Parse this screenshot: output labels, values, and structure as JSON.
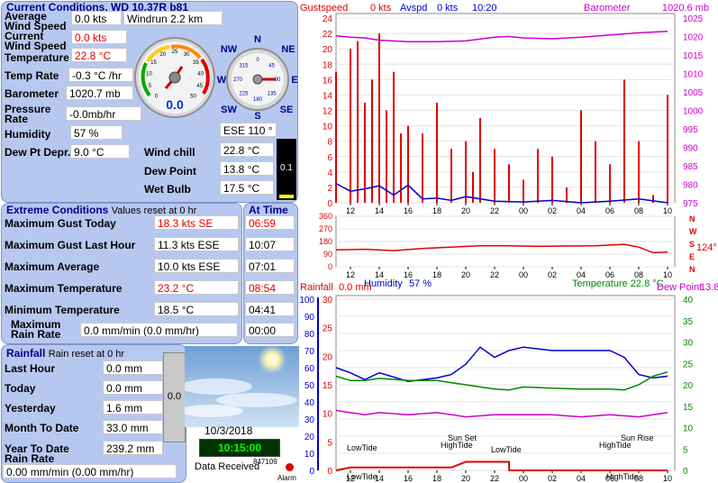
{
  "current": {
    "title": "Current Conditions, WD 10.37R b81",
    "avg_wind_label_1": "Average",
    "avg_wind_label_2": "Wind Speed",
    "avg_wind_value": "0.0 kts",
    "windrun": "Windrun 2.2 km",
    "cur_wind_label_1": "Current",
    "cur_wind_label_2": "Wind Speed",
    "cur_wind_value": "0.0 kts",
    "temp_label": "Temperature",
    "temp_value": "22.8 °C",
    "temp_rate_label": "Temp Rate",
    "temp_rate_value": "-0.3 °C /hr",
    "baro_label": "Barometer",
    "baro_value": "1020.7 mb",
    "press_rate_label_1": "Pressure",
    "press_rate_label_2": "Rate",
    "press_rate_value": "-0.0mb/hr",
    "humidity_label": "Humidity",
    "humidity_value": "57 %",
    "dew_depr_label": "Dew Pt Depr.",
    "dew_depr_value": "9.0 °C",
    "wind_chill_label": "Wind chill",
    "wind_chill_value": "22.8 °C",
    "dew_point_label": "Dew Point",
    "dew_point_value": "13.8 °C",
    "wet_bulb_label": "Wet Bulb",
    "wet_bulb_value": "17.5 °C",
    "wind_dir_value": "ESE  110 °",
    "uv_value": "0.1",
    "gauge_value": "0.0",
    "gauge_ticks": [
      "0",
      "5",
      "10",
      "15",
      "20",
      "25",
      "30",
      "35",
      "40",
      "45",
      "50"
    ],
    "compass": {
      "n": "N",
      "ne": "NE",
      "e": "E",
      "se": "SE",
      "s": "S",
      "sw": "SW",
      "w": "W",
      "nw": "NW",
      "ticks": [
        "0",
        "45",
        "90",
        "135",
        "180",
        "225",
        "270",
        "315"
      ]
    }
  },
  "extreme": {
    "title": "Extreme Conditions",
    "subtitle": "Values reset at 0 hr",
    "at_time_title": "At Time",
    "rows": [
      {
        "label": "Maximum Gust Today",
        "value": "18.3 kts  SE",
        "time": "06:59",
        "red": true
      },
      {
        "label": "Maximum Gust Last Hour",
        "value": "11.3 kts ESE",
        "time": "10:07",
        "red": false
      },
      {
        "label": "Maximum Average",
        "value": "10.0 kts ESE",
        "time": "07:01",
        "red": false
      },
      {
        "label": "Maximum Temperature",
        "value": "23.2 °C",
        "time": "08:54",
        "red": true
      },
      {
        "label": "Minimum Temperature",
        "value": "18.5 °C",
        "time": "04:41",
        "red": false
      }
    ],
    "max_rain_label_1": "Maximum",
    "max_rain_label_2": "Rain Rate",
    "max_rain_value": "0.0 mm/min (0.0 mm/hr)",
    "max_rain_time": "00:00"
  },
  "rainfall": {
    "title": "Rainfall",
    "subtitle": "Rain reset at 0 hr",
    "rows": [
      {
        "label": "Last Hour",
        "value": "0.0 mm"
      },
      {
        "label": "Today",
        "value": "0.0 mm"
      },
      {
        "label": "Yesterday",
        "value": "1.6 mm"
      },
      {
        "label": "Month To Date",
        "value": "33.0 mm"
      },
      {
        "label": "Year To Date",
        "value": "239.2 mm"
      }
    ],
    "rate_label": "Rain Rate",
    "rate_value": "0.00 mm/min (0.00 mm/hr)",
    "gauge_value": "0.0"
  },
  "status": {
    "date": "10/3/2018",
    "time": "10:15:00",
    "data_received": "Data Received",
    "count": "847109",
    "alarm": "Alarm"
  },
  "colors": {
    "panel": "#b6c8f0",
    "title": "#00008b",
    "red": "#e00000",
    "blue": "#0000cc",
    "magenta": "#cc00cc",
    "green": "#008800",
    "clock_bg": "#003300",
    "clock_fg": "#00ff00"
  },
  "chart_data": [
    {
      "type": "line",
      "title": "",
      "legend": {
        "gust": "Gustspeed",
        "gust_value": "0 kts",
        "avg": "Avspd",
        "avg_value": "0 kts",
        "time": "10:20",
        "baro": "Barometer",
        "baro_value": "1020.6 mb"
      },
      "x_ticks": [
        "12",
        "14",
        "16",
        "18",
        "20",
        "22",
        "00",
        "02",
        "04",
        "06",
        "08",
        "10"
      ],
      "y_left_ticks": [
        "0",
        "2",
        "4",
        "6",
        "8",
        "10",
        "12",
        "14",
        "16",
        "18",
        "20",
        "22",
        "24"
      ],
      "y_right_ticks": [
        "975",
        "980",
        "985",
        "990",
        "995",
        "1000",
        "1005",
        "1010",
        "1015",
        "1020",
        "1025"
      ],
      "ylim_left": [
        0,
        24
      ],
      "ylim_right": [
        975,
        1025
      ],
      "series": [
        {
          "name": "Gustspeed",
          "x": [
            11.0,
            12.0,
            12.5,
            13.0,
            13.5,
            14.0,
            14.5,
            15.0,
            15.5,
            16.0,
            17.0,
            18.0,
            19.0,
            20.0,
            20.5,
            21.0,
            22.0,
            23.0,
            24.0,
            25.0,
            26.0,
            27.0,
            28.0,
            29.0,
            30.0,
            31.0,
            32.0,
            33.0,
            34.0
          ],
          "values": [
            17,
            20,
            21,
            13,
            16,
            22,
            12,
            17,
            9,
            10,
            9,
            13,
            7,
            8,
            4,
            11,
            7,
            5,
            3,
            7,
            6,
            2,
            12,
            8,
            5,
            16,
            8,
            1,
            14
          ]
        },
        {
          "name": "Avspd",
          "x": [
            11.0,
            12.0,
            13.0,
            14.0,
            15.0,
            16.0,
            17.0,
            18.0,
            19.0,
            20.0,
            22.0,
            24.0,
            26.0,
            28.0,
            30.0,
            32.0,
            34.0
          ],
          "values": [
            2.5,
            1.5,
            1.8,
            2.2,
            1.0,
            2.3,
            0.5,
            0.6,
            0.3,
            0.8,
            0.2,
            0.1,
            0.3,
            0.0,
            0.2,
            0.5,
            0.0
          ]
        },
        {
          "name": "Barometer",
          "x": [
            11.0,
            12.0,
            13.0,
            14.0,
            16.0,
            18.0,
            20.0,
            22.0,
            23.0,
            24.0,
            26.0,
            28.0,
            30.0,
            32.0,
            34.0
          ],
          "values": [
            1020.2,
            1019.8,
            1019.6,
            1019.0,
            1018.6,
            1018.6,
            1018.8,
            1019.8,
            1020.0,
            1019.6,
            1019.4,
            1019.8,
            1020.4,
            1021.0,
            1021.4
          ]
        }
      ]
    },
    {
      "type": "line",
      "title": "",
      "x_ticks": [
        "12",
        "14",
        "16",
        "18",
        "20",
        "22",
        "00",
        "02",
        "04",
        "06",
        "08",
        "10"
      ],
      "y_ticks": [
        "360",
        "270",
        "180",
        "90",
        "0"
      ],
      "right_labels": [
        "N",
        "W",
        "S",
        "E",
        "N"
      ],
      "right_value": "124°",
      "ylim": [
        0,
        360
      ],
      "series": [
        {
          "name": "Wind direction",
          "x": [
            11,
            13,
            15,
            17,
            19,
            21,
            23,
            25,
            27,
            29,
            31,
            32,
            33,
            34
          ],
          "values": [
            120,
            125,
            115,
            130,
            140,
            150,
            150,
            145,
            148,
            150,
            160,
            140,
            100,
            105
          ]
        }
      ]
    },
    {
      "type": "line",
      "title": "",
      "legend": {
        "rainfall": "Rainfall",
        "rainfall_value": "0.0 mm",
        "humidity": "Humidity",
        "humidity_value": "57 %",
        "temperature": "Temperature 22.8 °C",
        "dew": "Dew Point",
        "dew_value": "13.8"
      },
      "x_ticks": [
        "12",
        "14",
        "16",
        "18",
        "20",
        "22",
        "00",
        "02",
        "04",
        "06",
        "08",
        "10"
      ],
      "y_left_ticks": [
        "0",
        "10",
        "20",
        "30",
        "40",
        "50",
        "60",
        "70",
        "80",
        "90",
        "100"
      ],
      "y_inner_ticks": [
        "0",
        "5",
        "10",
        "15",
        "20",
        "25",
        "30"
      ],
      "y_right_ticks": [
        "0",
        "5",
        "10",
        "15",
        "20",
        "25",
        "30",
        "35",
        "40"
      ],
      "ylim_left": [
        0,
        100
      ],
      "ylim_right": [
        0,
        40
      ],
      "annotations": [
        "LowTide",
        "HighTide",
        "Sun Set",
        "LowTide",
        "HighTide",
        "Sun Rise",
        "LowTide",
        "HighTide"
      ],
      "series": [
        {
          "name": "Humidity",
          "x": [
            11,
            12,
            13,
            14,
            16,
            18,
            19,
            20,
            21,
            22,
            23,
            24,
            26,
            28,
            30,
            31,
            32,
            33,
            34
          ],
          "values": [
            60,
            57,
            53,
            57,
            52,
            54,
            56,
            62,
            72,
            66,
            70,
            72,
            70,
            70,
            70,
            66,
            56,
            54,
            55
          ]
        },
        {
          "name": "Temperature",
          "x": [
            11,
            12,
            13,
            14,
            16,
            18,
            20,
            21,
            22,
            23,
            24,
            26,
            28,
            30,
            31,
            32,
            33,
            34
          ],
          "values": [
            22,
            21,
            21,
            21.5,
            21,
            21,
            20,
            19.5,
            19,
            18.8,
            19.5,
            19.2,
            19,
            19,
            18.8,
            20,
            22,
            23
          ]
        },
        {
          "name": "Dew Point",
          "x": [
            11,
            12,
            13,
            14,
            16,
            18,
            20,
            22,
            24,
            26,
            28,
            30,
            32,
            34
          ],
          "values": [
            14,
            13.5,
            13,
            13.5,
            13,
            13.5,
            12.5,
            13,
            13,
            13,
            12.5,
            13,
            12.5,
            13.5
          ]
        },
        {
          "name": "Rainfall",
          "x": [
            11,
            12,
            19,
            20,
            20.01,
            23,
            23.01,
            34
          ],
          "values": [
            0,
            0.5,
            0.5,
            1.5,
            1.5,
            1.5,
            0,
            0
          ]
        }
      ]
    }
  ]
}
